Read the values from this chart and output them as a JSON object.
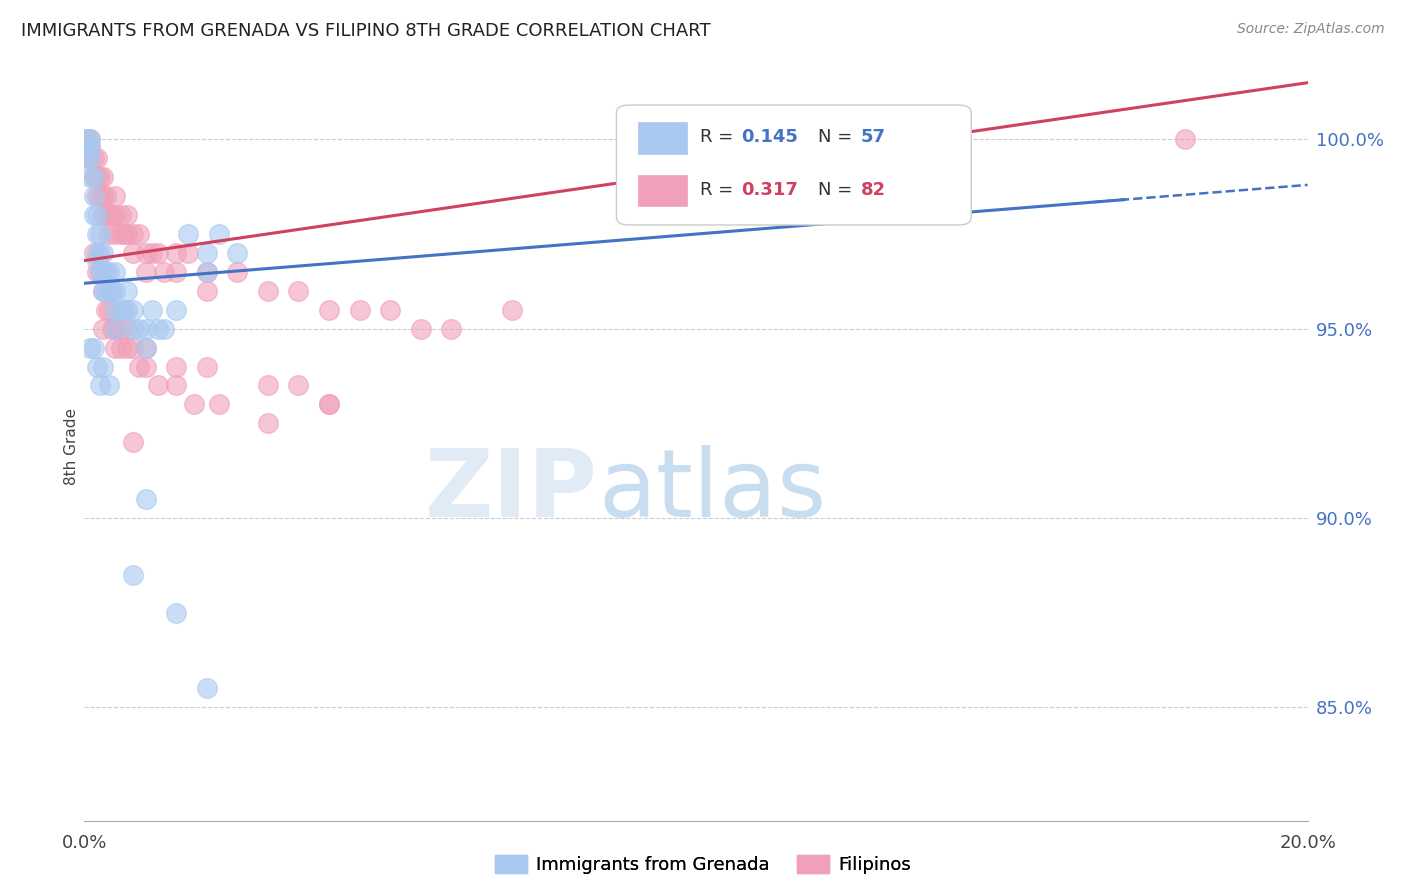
{
  "title": "IMMIGRANTS FROM GRENADA VS FILIPINO 8TH GRADE CORRELATION CHART",
  "source": "Source: ZipAtlas.com",
  "ylabel": "8th Grade",
  "ytick_labels": [
    "85.0%",
    "90.0%",
    "95.0%",
    "100.0%"
  ],
  "ytick_values": [
    85.0,
    90.0,
    95.0,
    100.0
  ],
  "xlim": [
    0.0,
    20.0
  ],
  "ylim": [
    82.0,
    101.8
  ],
  "legend1_label": "Immigrants from Grenada",
  "legend2_label": "Filipinos",
  "R1": 0.145,
  "N1": 57,
  "R2": 0.317,
  "N2": 82,
  "color_blue": "#A8C8F0",
  "color_pink": "#F0A0B8",
  "color_blue_line": "#4472C4",
  "color_pink_line": "#D04060",
  "blue_line_x0": 0.0,
  "blue_line_y0": 96.2,
  "blue_line_x1": 20.0,
  "blue_line_y1": 98.8,
  "pink_line_x0": 0.0,
  "pink_line_y0": 96.8,
  "pink_line_x1": 20.0,
  "pink_line_y1": 101.5,
  "blue_x": [
    0.05,
    0.05,
    0.05,
    0.1,
    0.1,
    0.1,
    0.1,
    0.15,
    0.15,
    0.15,
    0.2,
    0.2,
    0.2,
    0.2,
    0.25,
    0.25,
    0.25,
    0.3,
    0.3,
    0.3,
    0.35,
    0.35,
    0.4,
    0.4,
    0.45,
    0.5,
    0.5,
    0.5,
    0.5,
    0.6,
    0.65,
    0.7,
    0.7,
    0.8,
    0.8,
    0.9,
    1.0,
    1.0,
    1.1,
    1.2,
    1.3,
    1.5,
    1.7,
    2.0,
    2.0,
    2.5,
    0.1,
    0.15,
    0.2,
    0.25,
    0.3,
    0.4,
    1.5,
    2.2,
    0.8,
    1.0,
    2.0
  ],
  "blue_y": [
    100.0,
    99.8,
    99.5,
    100.0,
    99.8,
    99.5,
    99.0,
    99.0,
    98.5,
    98.0,
    98.0,
    97.5,
    97.0,
    96.8,
    97.5,
    97.0,
    96.5,
    97.0,
    96.5,
    96.0,
    96.5,
    96.0,
    96.5,
    96.0,
    96.0,
    96.5,
    96.0,
    95.5,
    95.0,
    95.5,
    95.5,
    96.0,
    95.5,
    95.5,
    95.0,
    95.0,
    95.0,
    94.5,
    95.5,
    95.0,
    95.0,
    95.5,
    97.5,
    97.0,
    96.5,
    97.0,
    94.5,
    94.5,
    94.0,
    93.5,
    94.0,
    93.5,
    87.5,
    97.5,
    88.5,
    90.5,
    85.5
  ],
  "pink_x": [
    0.05,
    0.05,
    0.1,
    0.1,
    0.1,
    0.15,
    0.15,
    0.2,
    0.2,
    0.2,
    0.25,
    0.25,
    0.3,
    0.3,
    0.3,
    0.35,
    0.35,
    0.4,
    0.4,
    0.45,
    0.5,
    0.5,
    0.5,
    0.6,
    0.6,
    0.65,
    0.7,
    0.7,
    0.8,
    0.8,
    0.9,
    1.0,
    1.0,
    1.1,
    1.2,
    1.3,
    1.5,
    1.5,
    1.7,
    2.0,
    2.0,
    2.5,
    3.0,
    3.5,
    4.0,
    4.5,
    5.0,
    5.5,
    6.0,
    7.0,
    0.3,
    0.5,
    0.7,
    1.0,
    1.5,
    2.0,
    3.0,
    3.5,
    4.0,
    0.15,
    0.2,
    0.25,
    0.3,
    0.35,
    0.4,
    0.45,
    0.5,
    0.5,
    0.6,
    0.6,
    0.7,
    0.8,
    0.9,
    1.0,
    1.2,
    1.5,
    1.8,
    2.2,
    3.0,
    4.0,
    18.0,
    0.8
  ],
  "pink_y": [
    100.0,
    99.5,
    100.0,
    99.8,
    99.5,
    99.5,
    99.0,
    99.5,
    99.0,
    98.5,
    99.0,
    98.5,
    99.0,
    98.5,
    98.0,
    98.5,
    98.0,
    98.0,
    97.5,
    98.0,
    98.5,
    98.0,
    97.5,
    98.0,
    97.5,
    97.5,
    98.0,
    97.5,
    97.5,
    97.0,
    97.5,
    97.0,
    96.5,
    97.0,
    97.0,
    96.5,
    97.0,
    96.5,
    97.0,
    96.5,
    96.0,
    96.5,
    96.0,
    96.0,
    95.5,
    95.5,
    95.5,
    95.0,
    95.0,
    95.5,
    95.0,
    95.0,
    94.5,
    94.5,
    94.0,
    94.0,
    93.5,
    93.5,
    93.0,
    97.0,
    96.5,
    96.5,
    96.0,
    95.5,
    95.5,
    95.0,
    95.0,
    94.5,
    95.0,
    94.5,
    95.0,
    94.5,
    94.0,
    94.0,
    93.5,
    93.5,
    93.0,
    93.0,
    92.5,
    93.0,
    100.0,
    92.0
  ]
}
